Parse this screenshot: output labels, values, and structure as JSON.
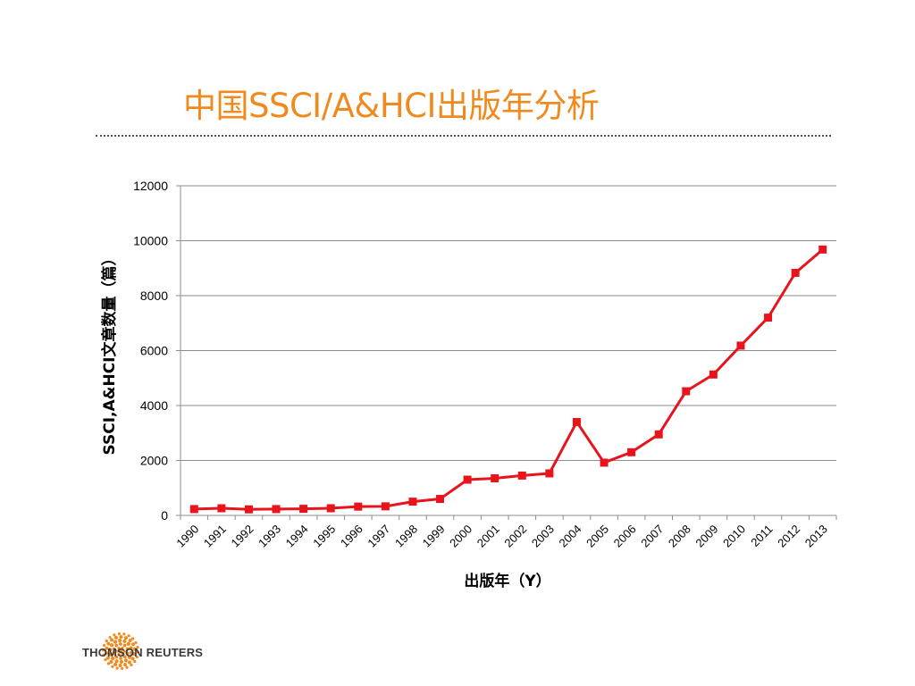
{
  "slide": {
    "title": "中国SSCI/A&HCI出版年分析"
  },
  "logo": {
    "text": "THOMSON REUTERS",
    "icon": "thomson-reuters-dots-icon"
  },
  "colors": {
    "title": "#F08A1E",
    "series": "#E8141B",
    "grid": "#8c8c8c"
  },
  "chart_data": {
    "type": "line",
    "title": "",
    "xlabel": "出版年（Y）",
    "ylabel": "SSCI,A&HCI文章数量（篇）",
    "ylim": [
      0,
      12000
    ],
    "yticks": [
      "0",
      "2000",
      "4000",
      "6000",
      "8000",
      "10000",
      "12000"
    ],
    "categories": [
      "1990",
      "1991",
      "1992",
      "1993",
      "1994",
      "1995",
      "1996",
      "1997",
      "1998",
      "1999",
      "2000",
      "2001",
      "2002",
      "2003",
      "2004",
      "2005",
      "2006",
      "2007",
      "2008",
      "2009",
      "2010",
      "2011",
      "2012",
      "2013"
    ],
    "grid": true,
    "legend": "none",
    "series": [
      {
        "values": [
          230,
          260,
          220,
          230,
          240,
          260,
          320,
          330,
          500,
          600,
          1300,
          1350,
          1450,
          1530,
          3400,
          1920,
          2300,
          2950,
          4520,
          5130,
          6180,
          7200,
          8830,
          9680
        ]
      }
    ]
  }
}
